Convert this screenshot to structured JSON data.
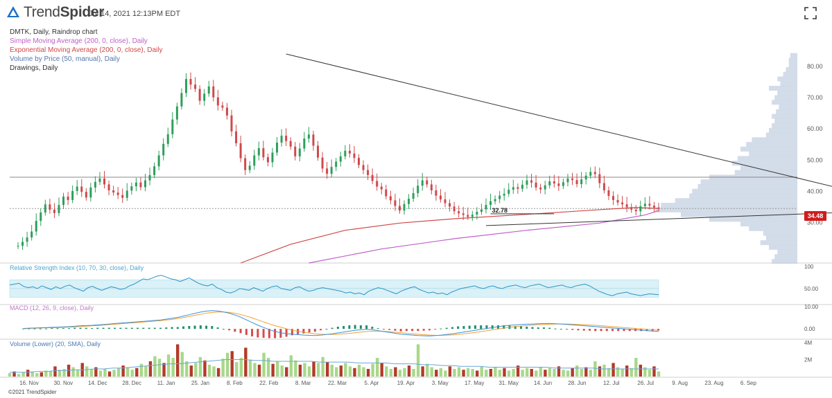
{
  "header": {
    "brand_light": "Trend",
    "brand_bold": "Spider",
    "timestamp": "Jul 14, 2021 12:13PM EDT",
    "colors": {
      "brand": "#1a6fc4"
    }
  },
  "studies": [
    {
      "text": "DMTK, Daily, Raindrop chart",
      "color": "#333333"
    },
    {
      "text": "Simple Moving Average (200, 0, close), Daily",
      "color": "#c060c8"
    },
    {
      "text": "Exponential Moving Average (200, 0, close), Daily",
      "color": "#d04848"
    },
    {
      "text": "Volume by Price (50, manual), Daily",
      "color": "#5577aa"
    },
    {
      "text": "Drawings, Daily",
      "color": "#333333"
    }
  ],
  "copyright": "©2021 TrendSpider",
  "chart_data": [
    {
      "type": "candlestick",
      "name": "DMTK Raindrop",
      "y_ticks": [
        "30.00",
        "40.00",
        "50.00",
        "60.00",
        "70.00",
        "80.00"
      ],
      "ylim": [
        17,
        88
      ],
      "x_ticks": [
        "16. Nov",
        "30. Nov",
        "14. Dec",
        "28. Dec",
        "11. Jan",
        "25. Jan",
        "8. Feb",
        "22. Feb",
        "8. Mar",
        "22. Mar",
        "5. Apr",
        "19. Apr",
        "3. May",
        "17. May",
        "31. May",
        "14. Jun",
        "28. Jun",
        "12. Jul",
        "26. Jul",
        "9. Aug",
        "23. Aug",
        "6. Sep"
      ],
      "closes": [
        22.5,
        23.8,
        25.2,
        27.1,
        30.5,
        33.2,
        35.8,
        34.1,
        33.0,
        35.6,
        38.3,
        37.2,
        40.1,
        41.5,
        39.8,
        38.0,
        41.2,
        43.0,
        44.1,
        42.2,
        40.3,
        39.6,
        38.8,
        37.9,
        40.2,
        41.6,
        42.8,
        41.3,
        43.5,
        45.2,
        48.0,
        51.5,
        55.2,
        58.3,
        63.0,
        67.2,
        71.5,
        76.0,
        74.2,
        72.8,
        69.0,
        71.3,
        73.6,
        70.1,
        67.5,
        66.8,
        64.3,
        59.2,
        55.4,
        50.6,
        46.8,
        48.2,
        51.5,
        53.8,
        50.9,
        49.3,
        52.4,
        55.6,
        57.8,
        56.1,
        54.3,
        51.2,
        53.7,
        56.9,
        58.2,
        54.6,
        50.8,
        47.3,
        45.6,
        47.8,
        49.5,
        51.2,
        53.0,
        52.1,
        50.7,
        48.4,
        46.8,
        45.2,
        43.3,
        41.5,
        40.6,
        38.4,
        37.1,
        35.3,
        33.8,
        35.9,
        37.6,
        39.4,
        41.8,
        43.5,
        42.2,
        40.3,
        38.6,
        37.4,
        36.2,
        35.1,
        33.6,
        32.9,
        32.4,
        31.8,
        32.5,
        33.4,
        34.2,
        35.6,
        36.8,
        37.5,
        38.6,
        39.2,
        40.5,
        41.3,
        40.8,
        42.1,
        43.5,
        42.8,
        41.2,
        40.6,
        41.9,
        43.2,
        42.5,
        41.7,
        42.9,
        44.1,
        43.6,
        42.3,
        43.8,
        45.0,
        46.2,
        45.5,
        42.6,
        40.3,
        38.5,
        37.2,
        36.4,
        35.8,
        34.9,
        34.1,
        33.6,
        35.2,
        36.0,
        35.4,
        34.8,
        34.48
      ],
      "last_price": "34.48",
      "price_line_label": "32.78",
      "price_line_value": 32.78,
      "trendline_points": [
        {
          "x": 59,
          "y": 84.0
        },
        {
          "x": 200,
          "y": 34.2
        },
        {
          "x": 103,
          "y": 29.0
        }
      ],
      "horizontal_level": 44.5,
      "sma200": [
        [
          64,
          17.0
        ],
        [
          80,
          21.5
        ],
        [
          96,
          24.8
        ],
        [
          112,
          27.5
        ],
        [
          128,
          29.8
        ],
        [
          138,
          32.4
        ],
        [
          141,
          33.8
        ]
      ],
      "ema200": [
        [
          49,
          17.0
        ],
        [
          60,
          23.0
        ],
        [
          72,
          27.5
        ],
        [
          84,
          29.8
        ],
        [
          96,
          31.2
        ],
        [
          112,
          32.6
        ],
        [
          128,
          34.1
        ],
        [
          136,
          34.8
        ],
        [
          141,
          34.5
        ]
      ],
      "volume_by_price": [
        {
          "price": 17.5,
          "size": 0.18
        },
        {
          "price": 19.0,
          "size": 0.16
        },
        {
          "price": 20.5,
          "size": 0.14
        },
        {
          "price": 22.0,
          "size": 0.2
        },
        {
          "price": 23.5,
          "size": 0.26
        },
        {
          "price": 25.0,
          "size": 0.22
        },
        {
          "price": 26.5,
          "size": 0.24
        },
        {
          "price": 28.0,
          "size": 0.34
        },
        {
          "price": 29.5,
          "size": 0.4
        },
        {
          "price": 31.0,
          "size": 0.62
        },
        {
          "price": 32.5,
          "size": 0.82
        },
        {
          "price": 34.0,
          "size": 1.0
        },
        {
          "price": 35.5,
          "size": 0.96
        },
        {
          "price": 37.0,
          "size": 0.86
        },
        {
          "price": 38.5,
          "size": 0.76
        },
        {
          "price": 40.0,
          "size": 0.74
        },
        {
          "price": 41.5,
          "size": 0.7
        },
        {
          "price": 43.0,
          "size": 0.68
        },
        {
          "price": 44.5,
          "size": 0.62
        },
        {
          "price": 46.0,
          "size": 0.44
        },
        {
          "price": 47.5,
          "size": 0.4
        },
        {
          "price": 49.0,
          "size": 0.46
        },
        {
          "price": 50.5,
          "size": 0.42
        },
        {
          "price": 52.0,
          "size": 0.34
        },
        {
          "price": 53.5,
          "size": 0.4
        },
        {
          "price": 55.0,
          "size": 0.36
        },
        {
          "price": 56.5,
          "size": 0.32
        },
        {
          "price": 58.0,
          "size": 0.22
        },
        {
          "price": 59.5,
          "size": 0.2
        },
        {
          "price": 61.0,
          "size": 0.18
        },
        {
          "price": 62.5,
          "size": 0.16
        },
        {
          "price": 64.0,
          "size": 0.18
        },
        {
          "price": 65.5,
          "size": 0.15
        },
        {
          "price": 67.0,
          "size": 0.13
        },
        {
          "price": 68.5,
          "size": 0.18
        },
        {
          "price": 70.0,
          "size": 0.16
        },
        {
          "price": 71.5,
          "size": 0.14
        },
        {
          "price": 73.0,
          "size": 0.2
        },
        {
          "price": 74.5,
          "size": 0.12
        },
        {
          "price": 76.0,
          "size": 0.14
        },
        {
          "price": 77.5,
          "size": 0.1
        },
        {
          "price": 79.0,
          "size": 0.08
        },
        {
          "price": 80.5,
          "size": 0.06
        },
        {
          "price": 82.0,
          "size": 0.06
        },
        {
          "price": 83.5,
          "size": 0.05
        }
      ]
    },
    {
      "type": "line",
      "name": "RSI",
      "title": "Relative Strength Index (10, 70, 30, close), Daily",
      "y_ticks": [
        "50.00",
        "100"
      ],
      "ylim": [
        20,
        100
      ],
      "band": [
        30,
        70
      ],
      "values": [
        58,
        60,
        62,
        55,
        52,
        54,
        50,
        56,
        52,
        48,
        54,
        50,
        55,
        58,
        52,
        48,
        44,
        52,
        55,
        50,
        46,
        50,
        54,
        52,
        48,
        50,
        56,
        60,
        66,
        72,
        70,
        74,
        78,
        80,
        76,
        72,
        70,
        66,
        70,
        74,
        68,
        62,
        58,
        56,
        60,
        52,
        48,
        42,
        40,
        44,
        50,
        48,
        46,
        52,
        48,
        44,
        50,
        54,
        56,
        50,
        48,
        46,
        52,
        54,
        48,
        44,
        46,
        50,
        52,
        50,
        48,
        46,
        44,
        40,
        42,
        38,
        40,
        36,
        44,
        48,
        52,
        50,
        46,
        42,
        38,
        44,
        48,
        52,
        54,
        48,
        44,
        40,
        42,
        38,
        40,
        36,
        42,
        46,
        50,
        52,
        54,
        56,
        52,
        50,
        54,
        56,
        52,
        50,
        54,
        56,
        58,
        54,
        52,
        56,
        58,
        60,
        56,
        52,
        54,
        56,
        58,
        54,
        52,
        56,
        58,
        60,
        56,
        50,
        44,
        40,
        36,
        34,
        38,
        40,
        42,
        38,
        36,
        34,
        36,
        38,
        37,
        36
      ]
    },
    {
      "type": "line",
      "name": "MACD",
      "title": "MACD (12, 26, 9, close), Daily",
      "y_ticks": [
        "0.00",
        "10.00"
      ],
      "ylim": [
        -4,
        10
      ],
      "macd": [
        0.2,
        0.3,
        0.4,
        0.5,
        0.6,
        0.7,
        0.8,
        0.9,
        1.0,
        1.2,
        1.4,
        1.5,
        1.6,
        1.8,
        2.0,
        2.2,
        2.4,
        2.6,
        2.8,
        3.0,
        3.2,
        3.4,
        3.6,
        3.8,
        4.0,
        4.4,
        4.8,
        5.2,
        5.8,
        6.4,
        7.0,
        7.6,
        8.0,
        8.2,
        8.0,
        7.6,
        7.0,
        6.2,
        5.2,
        4.0,
        2.8,
        1.6,
        0.6,
        -0.4,
        -1.2,
        -1.8,
        -2.2,
        -2.4,
        -2.6,
        -2.8,
        -2.9,
        -3.0,
        -2.8,
        -2.5,
        -2.2,
        -1.8,
        -1.4,
        -1.0,
        -0.6,
        -0.4,
        -0.2,
        -0.4,
        -0.8,
        -1.2,
        -1.6,
        -2.0,
        -2.4,
        -2.6,
        -2.8,
        -3.0,
        -3.1,
        -3.2,
        -3.0,
        -2.8,
        -2.5,
        -2.2,
        -1.8,
        -1.4,
        -1.0,
        -0.6,
        -0.2,
        0.2,
        0.6,
        1.0,
        1.4,
        1.6,
        1.8,
        2.0,
        2.1,
        2.2,
        2.3,
        2.4,
        2.4,
        2.3,
        2.2,
        2.0,
        1.8,
        1.6,
        1.4,
        1.2,
        1.0,
        0.8,
        0.6,
        0.4,
        0.2,
        0.0,
        -0.2,
        -0.4,
        -0.6,
        -0.8,
        -1.0,
        -1.1
      ],
      "signal": [
        0.1,
        0.2,
        0.3,
        0.4,
        0.5,
        0.5,
        0.6,
        0.7,
        0.8,
        0.9,
        1.1,
        1.2,
        1.4,
        1.5,
        1.7,
        1.9,
        2.1,
        2.3,
        2.5,
        2.7,
        2.9,
        3.1,
        3.3,
        3.5,
        3.7,
        4.0,
        4.3,
        4.7,
        5.1,
        5.6,
        6.1,
        6.6,
        7.1,
        7.4,
        7.6,
        7.6,
        7.4,
        7.0,
        6.4,
        5.7,
        4.9,
        4.0,
        3.1,
        2.2,
        1.4,
        0.7,
        0.0,
        -0.6,
        -1.1,
        -1.5,
        -1.9,
        -2.2,
        -2.4,
        -2.5,
        -2.5,
        -2.4,
        -2.2,
        -2.0,
        -1.7,
        -1.4,
        -1.2,
        -1.0,
        -1.0,
        -1.1,
        -1.3,
        -1.5,
        -1.7,
        -2.0,
        -2.2,
        -2.4,
        -2.6,
        -2.8,
        -2.9,
        -2.9,
        -2.8,
        -2.7,
        -2.5,
        -2.2,
        -1.9,
        -1.6,
        -1.2,
        -0.8,
        -0.4,
        0.0,
        0.4,
        0.7,
        1.0,
        1.3,
        1.5,
        1.7,
        1.9,
        2.0,
        2.1,
        2.2,
        2.2,
        2.2,
        2.1,
        2.0,
        1.9,
        1.7,
        1.6,
        1.4,
        1.2,
        1.0,
        0.8,
        0.6,
        0.4,
        0.2,
        0.0,
        -0.2,
        -0.4,
        -0.6
      ]
    },
    {
      "type": "bar",
      "name": "Volume",
      "title": "Volume (Lower) (20, SMA), Daily",
      "y_ticks": [
        "2M",
        "4M"
      ],
      "ylim": [
        0,
        4000000
      ],
      "values": [
        0.4,
        0.6,
        0.3,
        0.5,
        0.8,
        0.6,
        0.4,
        0.5,
        0.7,
        0.6,
        1.2,
        0.8,
        0.9,
        1.4,
        1.1,
        0.8,
        1.6,
        1.2,
        0.9,
        1.1,
        0.7,
        0.9,
        0.6,
        0.8,
        1.0,
        1.3,
        1.1,
        0.8,
        1.0,
        1.5,
        1.2,
        1.8,
        2.4,
        2.1,
        1.6,
        2.6,
        2.2,
        3.8,
        2.9,
        1.8,
        1.3,
        1.6,
        2.3,
        1.9,
        1.4,
        1.2,
        1.0,
        2.1,
        2.8,
        3.0,
        1.7,
        2.2,
        3.4,
        2.0,
        1.6,
        1.4,
        2.8,
        2.2,
        1.5,
        1.8,
        1.3,
        1.1,
        2.5,
        1.9,
        1.4,
        1.6,
        1.2,
        1.8,
        1.6,
        2.3,
        1.7,
        1.4,
        1.1,
        1.3,
        1.6,
        1.2,
        1.0,
        1.4,
        1.1,
        0.9,
        1.5,
        2.2,
        1.6,
        1.2,
        0.9,
        1.1,
        0.8,
        1.0,
        1.3,
        0.9,
        3.8,
        1.2,
        1.5,
        1.1,
        0.8,
        1.0,
        0.7,
        1.2,
        0.9,
        1.1,
        0.8,
        1.0,
        0.9,
        0.7,
        1.2,
        0.8,
        0.9,
        1.1,
        0.8,
        1.0,
        0.7,
        0.9,
        1.3,
        0.8,
        1.0,
        0.9,
        0.7,
        1.1,
        0.8,
        1.0,
        0.9,
        1.2,
        0.8,
        0.7,
        1.0,
        1.3,
        0.9,
        1.1,
        0.8,
        1.8,
        1.2,
        1.4,
        1.0,
        1.6,
        1.1,
        0.9,
        1.3,
        1.0,
        2.2,
        1.4,
        1.1,
        0.8,
        1.2,
        0.6
      ],
      "sma": [
        0.5,
        0.5,
        0.5,
        0.6,
        0.6,
        0.7,
        0.7,
        0.8,
        0.8,
        0.9,
        0.9,
        1.0,
        1.0,
        1.1,
        1.2,
        1.3,
        1.4,
        1.5,
        1.5,
        1.6,
        1.7,
        1.8,
        1.9,
        2.0,
        2.0,
        2.0,
        1.9,
        1.9,
        1.8,
        1.8,
        1.8,
        1.8,
        1.8,
        1.7,
        1.7,
        1.7,
        1.7,
        1.6,
        1.6,
        1.6,
        1.6,
        1.5,
        1.5,
        1.5,
        1.4,
        1.4,
        1.3,
        1.3,
        1.2,
        1.2,
        1.2,
        1.1,
        1.1,
        1.1,
        1.1,
        1.1,
        1.1,
        1.1,
        1.0,
        1.0,
        1.0,
        1.0,
        1.0,
        0.9,
        0.9,
        0.9,
        0.9,
        0.9,
        0.9,
        0.9
      ]
    }
  ]
}
